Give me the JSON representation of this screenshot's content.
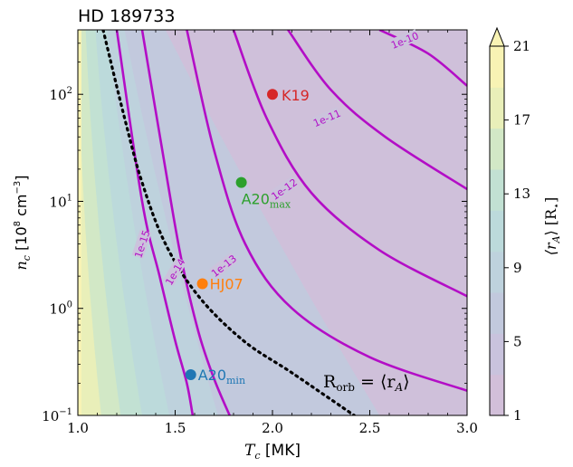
{
  "chart_data": {
    "type": "contour",
    "title": "HD 189733",
    "xlabel_main": "T",
    "xlabel_sub": "c",
    "xlabel_unit": " [MK]",
    "ylabel_main": "n",
    "ylabel_sub": "c",
    "ylabel_unit_pre": " [10",
    "ylabel_unit_exp": "8",
    "ylabel_unit_mid": " cm",
    "ylabel_unit_exp2": "−3",
    "ylabel_unit_post": "]",
    "xlim": [
      1.0,
      3.0
    ],
    "ylim": [
      0.1,
      400
    ],
    "yscale": "log",
    "x_ticks": [
      {
        "v": 1.0,
        "label": "1.0"
      },
      {
        "v": 1.5,
        "label": "1.5"
      },
      {
        "v": 2.0,
        "label": "2.0"
      },
      {
        "v": 2.5,
        "label": "2.5"
      },
      {
        "v": 3.0,
        "label": "3.0"
      }
    ],
    "y_ticks": [
      {
        "v": 0.1,
        "base": "10",
        "exp": "−1"
      },
      {
        "v": 1,
        "base": "10",
        "exp": "0"
      },
      {
        "v": 10,
        "base": "10",
        "exp": "1"
      },
      {
        "v": 100,
        "base": "10",
        "exp": "2"
      }
    ],
    "colorbar": {
      "label": "⟨r_A⟩ [R⋆]",
      "label_main": "⟨r",
      "label_sub": "A",
      "label_rest": "⟩ [R",
      "label_sub2": "⋆",
      "label_end": "]",
      "range": [
        1,
        21
      ],
      "ticks": [
        "1",
        "5",
        "9",
        "13",
        "17",
        "21"
      ],
      "extend": "max",
      "colors": [
        "#d2bfd9",
        "#c9c3dd",
        "#c2c9dd",
        "#bed2dd",
        "#bcdadb",
        "#c2e1d3",
        "#d2e8c6",
        "#e9efb9",
        "#f8f3b4"
      ]
    },
    "contours": [
      {
        "label": "1e-15",
        "points": [
          [
            1.2,
            400
          ],
          [
            1.33,
            10
          ],
          [
            1.42,
            2
          ],
          [
            1.5,
            0.5
          ],
          [
            1.56,
            0.2
          ],
          [
            1.59,
            0.1
          ]
        ]
      },
      {
        "label": "1e-14",
        "points": [
          [
            1.33,
            400
          ],
          [
            1.45,
            20
          ],
          [
            1.53,
            3
          ],
          [
            1.62,
            0.6
          ],
          [
            1.7,
            0.22
          ],
          [
            1.78,
            0.1
          ]
        ]
      },
      {
        "label": "1e-13",
        "points": [
          [
            1.56,
            400
          ],
          [
            1.7,
            30
          ],
          [
            1.86,
            4
          ],
          [
            2.1,
            1
          ],
          [
            2.5,
            0.35
          ],
          [
            3.0,
            0.17
          ]
        ]
      },
      {
        "label": "1e-12",
        "points": [
          [
            1.8,
            400
          ],
          [
            1.97,
            60
          ],
          [
            2.2,
            12
          ],
          [
            2.55,
            3.5
          ],
          [
            3.0,
            1.3
          ]
        ]
      },
      {
        "label": "1e-11",
        "points": [
          [
            2.08,
            400
          ],
          [
            2.3,
            110
          ],
          [
            2.58,
            40
          ],
          [
            3.0,
            13
          ]
        ]
      },
      {
        "label": "1e-10",
        "points": [
          [
            2.55,
            400
          ],
          [
            2.8,
            240
          ],
          [
            3.0,
            120
          ]
        ]
      }
    ],
    "dotted_curve": {
      "label": "R_orb = ⟨r_A⟩",
      "label_main": "R",
      "label_sub": "orb",
      "label_rest": " = ⟨r",
      "label_sub2": "A",
      "label_end": "⟩",
      "points": [
        [
          1.13,
          400
        ],
        [
          1.24,
          60
        ],
        [
          1.33,
          15
        ],
        [
          1.45,
          4
        ],
        [
          1.62,
          1.3
        ],
        [
          1.85,
          0.5
        ],
        [
          2.1,
          0.25
        ],
        [
          2.42,
          0.1
        ]
      ]
    },
    "points": [
      {
        "name": "K19",
        "name_sub": "",
        "x": 2.0,
        "y": 100,
        "color": "#d62728"
      },
      {
        "name": "A20",
        "name_sub": "max",
        "x": 1.84,
        "y": 15,
        "color": "#2ca02c"
      },
      {
        "name": "HJ07",
        "name_sub": "",
        "x": 1.64,
        "y": 1.7,
        "color": "#ff7f0e"
      },
      {
        "name": "A20",
        "name_sub": "min",
        "x": 1.58,
        "y": 0.24,
        "color": "#1f77b4"
      }
    ],
    "fill_bands": [
      {
        "x0_top": 0.95,
        "x0_bot": 1.0,
        "color": "#f8f3b4"
      },
      {
        "x_top": 1.0,
        "x_bot": 1.12,
        "color": "#e9efb9"
      },
      {
        "x_top": 1.04,
        "x_bot": 1.22,
        "color": "#d2e8c6"
      },
      {
        "x_top": 1.09,
        "x_bot": 1.33,
        "color": "#c2e1d3"
      },
      {
        "x_top": 1.15,
        "x_bot": 1.47,
        "color": "#bcdadb"
      },
      {
        "x_top": 1.24,
        "x_bot": 1.72,
        "color": "#bed2dd"
      },
      {
        "x_top": 1.45,
        "x_bot": 2.55,
        "color": "#c2c9dd"
      }
    ]
  }
}
